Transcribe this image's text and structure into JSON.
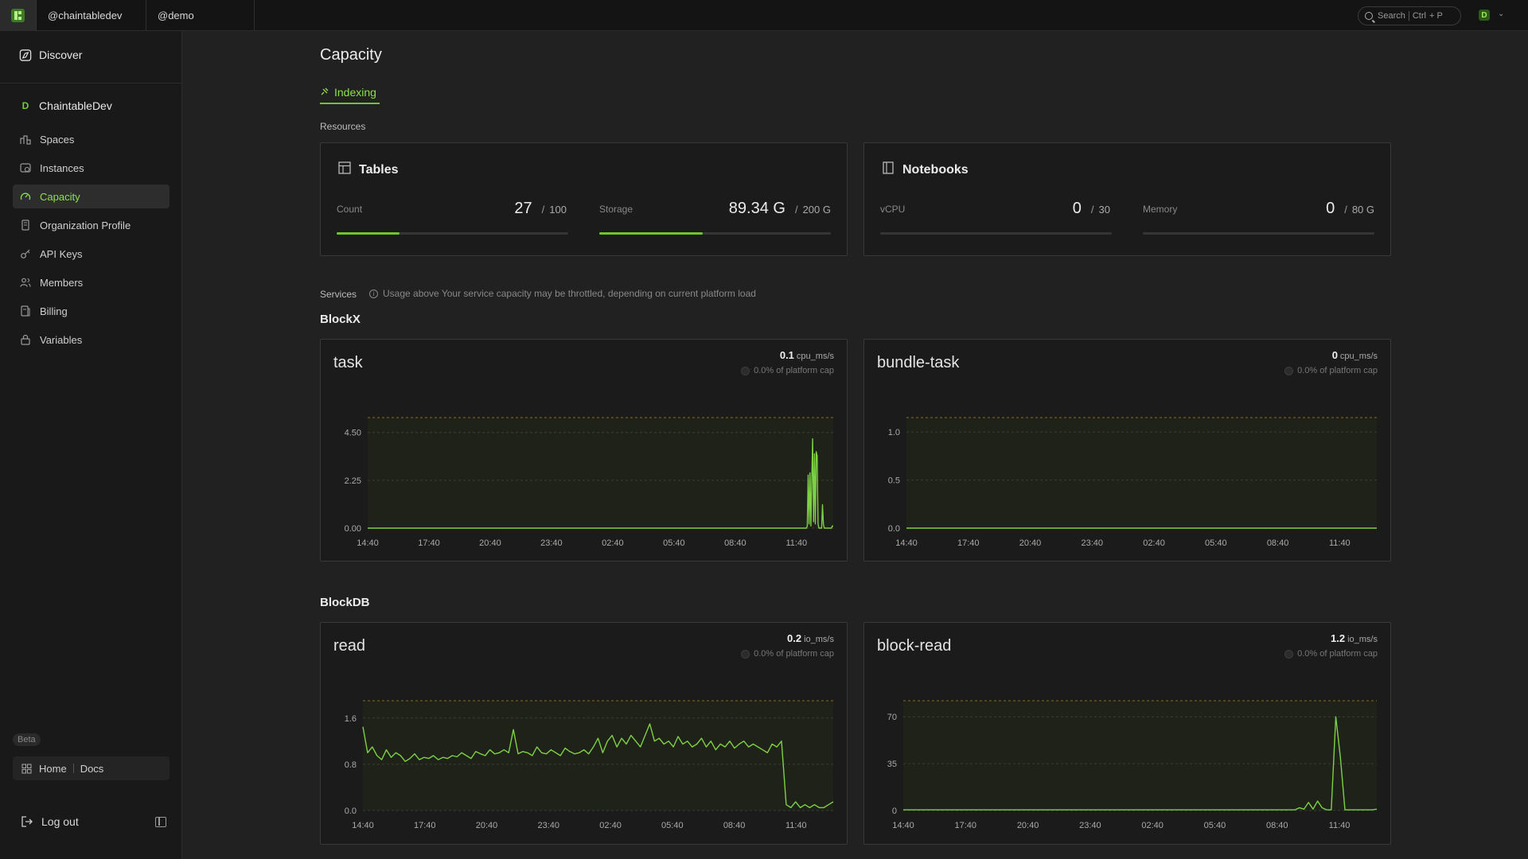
{
  "topbar": {
    "orgs": [
      "@chaintabledev",
      "@demo"
    ],
    "search": {
      "label": "Search",
      "shortcut_key": "Ctrl",
      "shortcut_suffix": "+ P"
    },
    "user_initial": "D"
  },
  "sidebar": {
    "discover_label": "Discover",
    "org_initial": "D",
    "org_name": "ChaintableDev",
    "items": [
      {
        "label": "Spaces",
        "icon": "spaces-icon",
        "active": false
      },
      {
        "label": "Instances",
        "icon": "instances-icon",
        "active": false
      },
      {
        "label": "Capacity",
        "icon": "gauge-icon",
        "active": true
      },
      {
        "label": "Organization Profile",
        "icon": "profile-icon",
        "active": false
      },
      {
        "label": "API Keys",
        "icon": "key-icon",
        "active": false
      },
      {
        "label": "Members",
        "icon": "members-icon",
        "active": false
      },
      {
        "label": "Billing",
        "icon": "billing-icon",
        "active": false
      },
      {
        "label": "Variables",
        "icon": "lock-icon",
        "active": false
      }
    ],
    "beta_label": "Beta",
    "home_label": "Home",
    "docs_label": "Docs",
    "logout_label": "Log out"
  },
  "main": {
    "title": "Capacity",
    "tab": "Indexing",
    "resources_label": "Resources",
    "tables": {
      "title": "Tables",
      "count": {
        "label": "Count",
        "value": "27",
        "limit": "100",
        "fraction": 0.27
      },
      "storage": {
        "label": "Storage",
        "value": "89.34 G",
        "limit": "200 G",
        "fraction": 0.4467
      }
    },
    "notebooks": {
      "title": "Notebooks",
      "vcpu": {
        "label": "vCPU",
        "value": "0",
        "limit": "30",
        "fraction": 0
      },
      "memory": {
        "label": "Memory",
        "value": "0",
        "limit": "80 G",
        "fraction": 0
      }
    },
    "services_label": "Services",
    "services_note": "Usage above Your service capacity may be throttled, depending on current platform load",
    "slash": "/",
    "groups": [
      {
        "title": "BlockX"
      },
      {
        "title": "BlockDB"
      }
    ],
    "charts": [
      {
        "name": "task",
        "rate": "0.1",
        "unit": "cpu_ms/s",
        "cap": "0.0% of platform cap"
      },
      {
        "name": "bundle-task",
        "rate": "0",
        "unit": "cpu_ms/s",
        "cap": "0.0% of platform cap"
      },
      {
        "name": "read",
        "rate": "0.2",
        "unit": "io_ms/s",
        "cap": "0.0% of platform cap"
      },
      {
        "name": "block-read",
        "rate": "1.2",
        "unit": "io_ms/s",
        "cap": "0.0% of platform cap"
      }
    ]
  },
  "chart_data": [
    {
      "type": "line",
      "title": "task",
      "x_ticks": [
        "14:40",
        "17:40",
        "20:40",
        "23:40",
        "02:40",
        "05:40",
        "08:40",
        "11:40"
      ],
      "y_ticks": [
        "0.00",
        "2.25",
        "4.50"
      ],
      "ylim": [
        0,
        5.2
      ],
      "cap_line": 5.2,
      "values": [
        0,
        0,
        0,
        0,
        0,
        0,
        0,
        0,
        0,
        0,
        0,
        0,
        0,
        0,
        0,
        0,
        0,
        0,
        0,
        0,
        0,
        0,
        0,
        0,
        0,
        0,
        0,
        0,
        0,
        0,
        0,
        0,
        0,
        0,
        0,
        0,
        0,
        0,
        0,
        0,
        0,
        0,
        0,
        0,
        0,
        0,
        0,
        0,
        0,
        0,
        0,
        0,
        0,
        0,
        0,
        0,
        0,
        0,
        0,
        0,
        0,
        0,
        0,
        0,
        0,
        0,
        0,
        0,
        0,
        0,
        0,
        0,
        0,
        0,
        0,
        0,
        0,
        0,
        0,
        0,
        0,
        0,
        0,
        0,
        0,
        0,
        0,
        0,
        0,
        0,
        0,
        0,
        0,
        0,
        0,
        0,
        0,
        0,
        0,
        0,
        0,
        0,
        0,
        0,
        0,
        0,
        0,
        0,
        0,
        0,
        0,
        0,
        0,
        0,
        0,
        0,
        0,
        0,
        0,
        0,
        0,
        0,
        0,
        0,
        0,
        0,
        0,
        0,
        0,
        0,
        0,
        0,
        0,
        0,
        0,
        0,
        0,
        0,
        0,
        0,
        0,
        0,
        0,
        0,
        0,
        0,
        0,
        0,
        0,
        0,
        0,
        0,
        0,
        0,
        0,
        0,
        0,
        0,
        0,
        0,
        0,
        0,
        0,
        0,
        0,
        0,
        0,
        0,
        0,
        0,
        0,
        0,
        0,
        0,
        0,
        0,
        0,
        0,
        0,
        0,
        0,
        0,
        0,
        0,
        0,
        0,
        0,
        0,
        0,
        0,
        0,
        0,
        0,
        0,
        0,
        0,
        0,
        0,
        0,
        0,
        0,
        0,
        0,
        0,
        0,
        0,
        0,
        0,
        0,
        0,
        0,
        0,
        0,
        0,
        0,
        0,
        0,
        0,
        0,
        0,
        0,
        0,
        0,
        0,
        0,
        0,
        0,
        0,
        0,
        0,
        0,
        0,
        0,
        0,
        0,
        0,
        0,
        0,
        0,
        0,
        0,
        0,
        0,
        0,
        0,
        0,
        0,
        0,
        0,
        0,
        0,
        0,
        0,
        0,
        0,
        0,
        0,
        0,
        0,
        0,
        0,
        0,
        0,
        0,
        0,
        0,
        0,
        0,
        0,
        0,
        0,
        0,
        0,
        0,
        0,
        0,
        0,
        0,
        0,
        0,
        0,
        0,
        0,
        0,
        0,
        0,
        0,
        0,
        0,
        0,
        0,
        0,
        0,
        0,
        0,
        0,
        0,
        0,
        0,
        0,
        0,
        0,
        0,
        0,
        0,
        0,
        0,
        0,
        0,
        0,
        0,
        0,
        0,
        0,
        0,
        0,
        0,
        0,
        0,
        0,
        0,
        0,
        0,
        0,
        0,
        0,
        0,
        0,
        0,
        0,
        0,
        0,
        0,
        0,
        0,
        0,
        0,
        0,
        0,
        0,
        0,
        0,
        0,
        0,
        0,
        0,
        0,
        0,
        0,
        0,
        0,
        0,
        0,
        0,
        0,
        0,
        0,
        0,
        0,
        0,
        0,
        0,
        0,
        0,
        0,
        0,
        0,
        0,
        0,
        0,
        0,
        0,
        0,
        0,
        0,
        0,
        0,
        0,
        0,
        0,
        0,
        0,
        0,
        0,
        0,
        0,
        0,
        0,
        0,
        0,
        0,
        0,
        0,
        0,
        0,
        0,
        0,
        0,
        0,
        0,
        0,
        0,
        0,
        0,
        0,
        0,
        0,
        0,
        0,
        0,
        0,
        0,
        0,
        0,
        0,
        0,
        0,
        0,
        0,
        0,
        0,
        0,
        0,
        0,
        0,
        0,
        0,
        0,
        0,
        0,
        0,
        0,
        0,
        0,
        0,
        0,
        0,
        0,
        0,
        0,
        0,
        0,
        0,
        0,
        0,
        0,
        0,
        0,
        0,
        0,
        0,
        0,
        0,
        0,
        0,
        0,
        0,
        0,
        0,
        0,
        0,
        0,
        0,
        0,
        0,
        0,
        0,
        0,
        0,
        0,
        0,
        0,
        0,
        0,
        0,
        0,
        0,
        0,
        0,
        0,
        0,
        0,
        0,
        0,
        0,
        0,
        0,
        0,
        0,
        0,
        0,
        0.1,
        2.5,
        0.2,
        2.6,
        0.1,
        2.2,
        4.2,
        0.3,
        3.5,
        0.2,
        3.6,
        3.4,
        0.2,
        0,
        0,
        0,
        0,
        1.1,
        0.2,
        0,
        0,
        0,
        0,
        0,
        0,
        0,
        0,
        0,
        0.1,
        0.1
      ]
    },
    {
      "type": "line",
      "title": "bundle-task",
      "x_ticks": [
        "14:40",
        "17:40",
        "20:40",
        "23:40",
        "02:40",
        "05:40",
        "08:40",
        "11:40"
      ],
      "y_ticks": [
        "0.0",
        "0.5",
        "1.0"
      ],
      "ylim": [
        0,
        1.15
      ],
      "cap_line": 1.15,
      "values": [
        0,
        0,
        0,
        0,
        0,
        0,
        0,
        0,
        0,
        0,
        0,
        0,
        0,
        0,
        0,
        0,
        0,
        0,
        0,
        0,
        0,
        0,
        0,
        0,
        0,
        0,
        0,
        0,
        0,
        0
      ]
    },
    {
      "type": "line",
      "title": "read",
      "x_ticks": [
        "14:40",
        "17:40",
        "20:40",
        "23:40",
        "02:40",
        "05:40",
        "08:40",
        "11:40"
      ],
      "y_ticks": [
        "0.0",
        "0.8",
        "1.6"
      ],
      "ylim": [
        0,
        1.9
      ],
      "cap_line": 1.9,
      "values": [
        1.45,
        1.0,
        1.1,
        0.95,
        0.88,
        1.05,
        0.92,
        1.0,
        0.95,
        0.85,
        0.9,
        0.98,
        0.88,
        0.92,
        0.9,
        0.95,
        0.88,
        0.92,
        0.9,
        0.95,
        0.93,
        1.0,
        0.95,
        0.9,
        1.02,
        0.98,
        0.95,
        1.05,
        0.98,
        1.0,
        1.05,
        1.0,
        1.4,
        0.98,
        1.02,
        1.0,
        0.95,
        1.1,
        1.0,
        0.98,
        1.05,
        1.0,
        0.95,
        1.08,
        1.02,
        0.98,
        1.0,
        1.05,
        0.98,
        1.1,
        1.25,
        1.0,
        1.2,
        1.3,
        1.1,
        1.25,
        1.15,
        1.3,
        1.2,
        1.1,
        1.3,
        1.5,
        1.2,
        1.25,
        1.15,
        1.2,
        1.1,
        1.28,
        1.15,
        1.2,
        1.1,
        1.15,
        1.25,
        1.1,
        1.2,
        1.05,
        1.15,
        1.1,
        1.2,
        1.08,
        1.15,
        1.2,
        1.1,
        1.15,
        1.1,
        1.05,
        1.0,
        1.15,
        1.1,
        1.2,
        0.1,
        0.05,
        0.15,
        0.05,
        0.1,
        0.05,
        0.1,
        0.05,
        0.05,
        0.1,
        0.15
      ]
    },
    {
      "type": "line",
      "title": "block-read",
      "x_ticks": [
        "14:40",
        "17:40",
        "20:40",
        "23:40",
        "02:40",
        "05:40",
        "08:40",
        "11:40"
      ],
      "y_ticks": [
        "0",
        "35",
        "70"
      ],
      "ylim": [
        0,
        82
      ],
      "cap_line": 82,
      "values": [
        0.5,
        0.5,
        0.5,
        0.5,
        0.5,
        0.5,
        0.5,
        0.5,
        0.5,
        0.5,
        0.5,
        0.5,
        0.5,
        0.5,
        0.5,
        0.5,
        0.5,
        0.5,
        0.5,
        0.5,
        0.5,
        0.5,
        0.5,
        0.5,
        0.5,
        0.5,
        0.5,
        0.5,
        0.5,
        0.5,
        0.5,
        0.5,
        0.5,
        0.5,
        0.5,
        0.5,
        0.5,
        0.5,
        0.5,
        0.5,
        0.5,
        0.5,
        0.5,
        0.5,
        0.5,
        0.5,
        0.5,
        0.5,
        0.5,
        0.5,
        0.5,
        0.5,
        0.5,
        0.5,
        0.5,
        0.5,
        0.5,
        0.5,
        0.5,
        0.5,
        0.5,
        0.5,
        0.5,
        0.5,
        0.5,
        0.5,
        0.5,
        0.5,
        0.5,
        0.5,
        0.5,
        0.5,
        0.5,
        0.5,
        0.5,
        0.5,
        0.5,
        0.5,
        0.5,
        0.5,
        0.5,
        0.5,
        0.5,
        0.5,
        0.5,
        0.5,
        0.5,
        2,
        1,
        6,
        1,
        7,
        2,
        0.5,
        0.5,
        70,
        40,
        0.5,
        0.5,
        0.5,
        0.5,
        0.5,
        0.5,
        0.5,
        1
      ]
    }
  ],
  "colors": {
    "accent": "#6cc62c",
    "accent_text": "#8fe04c",
    "line": "#7ed144",
    "cap_line": "#8a6a2a",
    "chart_bg": "#1e2219"
  }
}
